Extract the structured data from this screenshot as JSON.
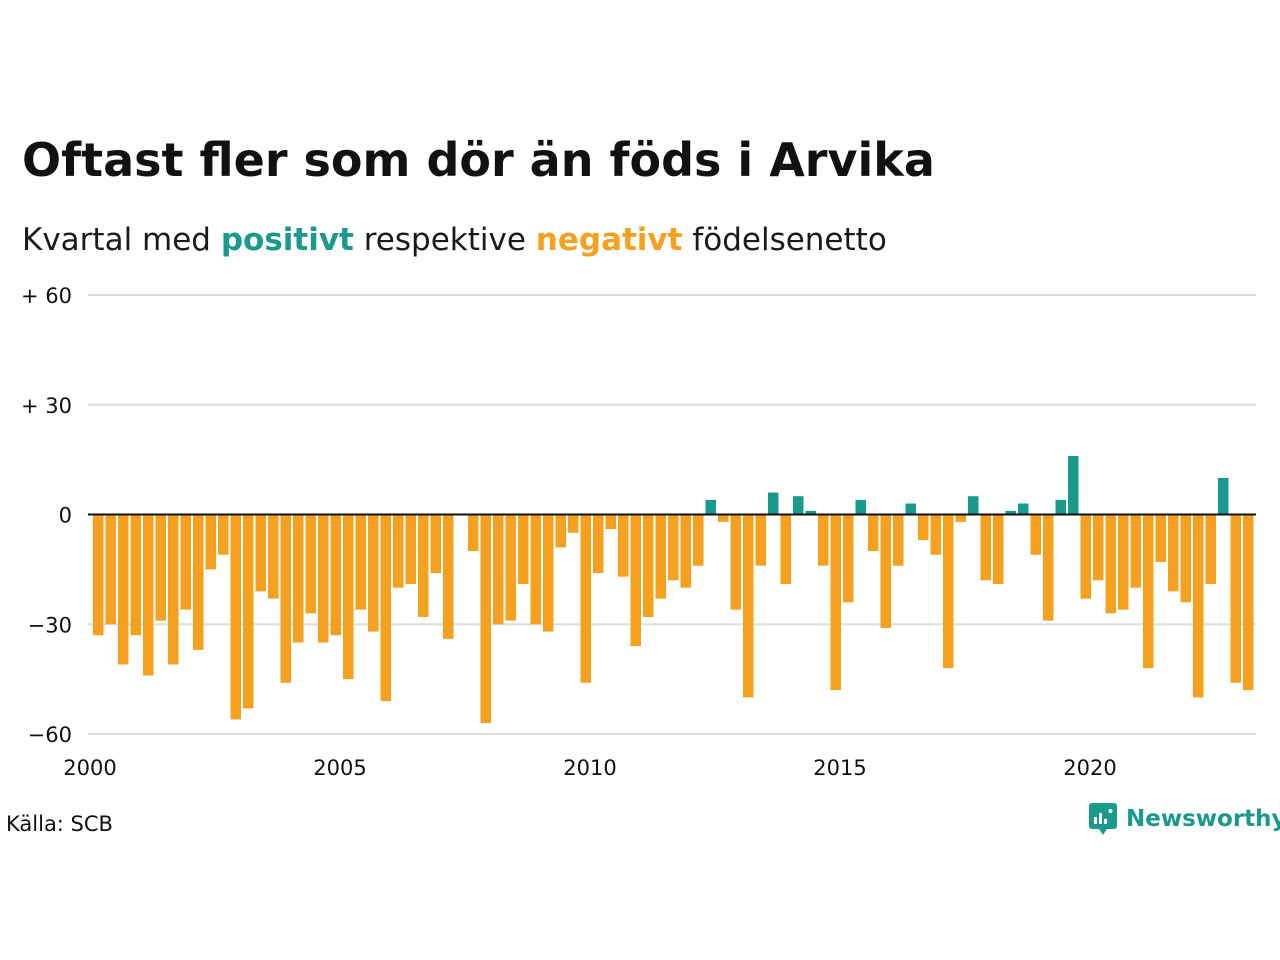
{
  "title": "Oftast fler som dör än föds i Arvika",
  "subtitle": {
    "prefix": "Kvartal med ",
    "positive_word": "positivt",
    "middle": " respektive ",
    "negative_word": "negativt",
    "suffix": " födelsenetto"
  },
  "source": "Källa: SCB",
  "brand": {
    "name": "Newsworthy",
    "logo_icon": "newsworthy-logo-icon"
  },
  "colors": {
    "positive": "#1a9a8c",
    "negative": "#f5a01e",
    "grid": "#dddddd",
    "zero_line": "#111111"
  },
  "chart_data": {
    "type": "bar",
    "x_unit": "quarter",
    "x_start": "2000Q1",
    "x_tick_labels": [
      "2000",
      "2005",
      "2010",
      "2015",
      "2020"
    ],
    "y_tick_labels": [
      "+ 60",
      "+ 30",
      "0",
      "−30",
      "−60"
    ],
    "y_ticks": [
      60,
      30,
      0,
      -30,
      -60
    ],
    "ylim": [
      -60,
      60
    ],
    "grid": true,
    "legend": "none",
    "series": [
      {
        "values": [
          -33,
          -30,
          -41,
          -33,
          -44,
          -29,
          -41,
          -26,
          -37,
          -15,
          -11,
          -56,
          -53,
          -21,
          -23,
          -46,
          -35,
          -27,
          -35,
          -33,
          -45,
          -26,
          -32,
          -51,
          -20,
          -19,
          -28,
          -16,
          -34,
          0,
          -10,
          -57,
          -30,
          -29,
          -19,
          -30,
          -32,
          -9,
          -5,
          -46,
          -16,
          -4,
          -17,
          -36,
          -28,
          -23,
          -18,
          -20,
          -14,
          4,
          -2,
          -26,
          -50,
          -14,
          6,
          -19,
          5,
          1,
          -14,
          -48,
          -24,
          4,
          -10,
          -31,
          -14,
          3,
          -7,
          -11,
          -42,
          -2,
          5,
          -18,
          -19,
          1,
          3,
          -11,
          -29,
          4,
          16,
          -23,
          -18,
          -27,
          -26,
          -20,
          -42,
          -13,
          -21,
          -24,
          -50,
          -19,
          10,
          -46,
          -48
        ]
      }
    ]
  }
}
